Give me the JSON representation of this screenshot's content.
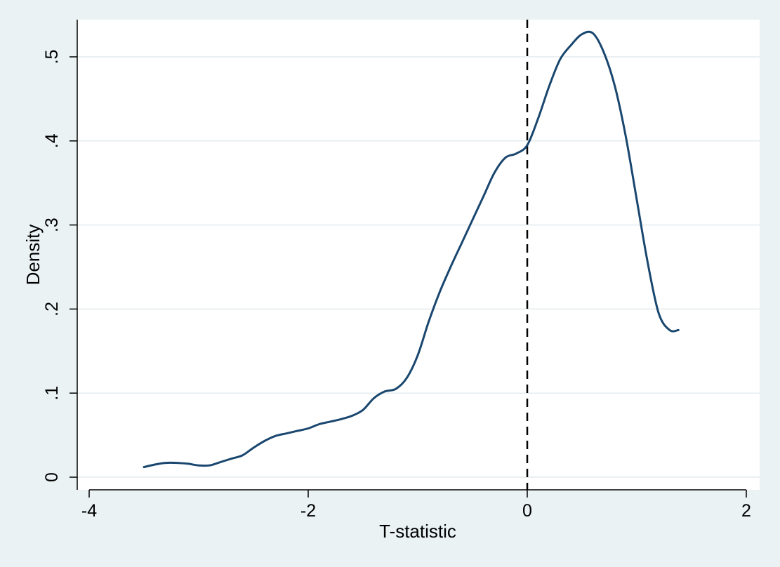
{
  "chart_data": {
    "type": "line",
    "title": "",
    "xlabel": "T-statistic",
    "ylabel": "Density",
    "xlim": [
      -4,
      2
    ],
    "ylim": [
      0,
      0.55
    ],
    "x_ticks": [
      -4,
      -2,
      0,
      2
    ],
    "x_tick_labels": [
      "-4",
      "-2",
      "0",
      "2"
    ],
    "y_ticks": [
      0,
      0.1,
      0.2,
      0.3,
      0.4,
      0.5
    ],
    "y_tick_labels": [
      "0",
      ".1",
      ".2",
      ".3",
      ".4",
      ".5"
    ],
    "grid": "horizontal",
    "reference_line": {
      "x": 0,
      "style": "dashed"
    },
    "colors": {
      "line": "#1a476f",
      "background": "#eaf2f3",
      "plot_background": "#ffffff",
      "grid": "#e4ecee"
    },
    "series": [
      {
        "x": [
          -3.5,
          -3.4,
          -3.3,
          -3.2,
          -3.1,
          -3.0,
          -2.9,
          -2.8,
          -2.7,
          -2.6,
          -2.5,
          -2.4,
          -2.3,
          -2.2,
          -2.1,
          -2.0,
          -1.9,
          -1.8,
          -1.7,
          -1.6,
          -1.5,
          -1.4,
          -1.3,
          -1.2,
          -1.1,
          -1.0,
          -0.9,
          -0.8,
          -0.7,
          -0.6,
          -0.5,
          -0.4,
          -0.3,
          -0.2,
          -0.1,
          0.0,
          0.1,
          0.2,
          0.3,
          0.4,
          0.5,
          0.6,
          0.7,
          0.8,
          0.9,
          1.0,
          1.1,
          1.2,
          1.3,
          1.38
        ],
        "values": [
          0.012,
          0.015,
          0.017,
          0.017,
          0.016,
          0.014,
          0.014,
          0.018,
          0.022,
          0.026,
          0.035,
          0.043,
          0.049,
          0.052,
          0.055,
          0.058,
          0.063,
          0.066,
          0.069,
          0.073,
          0.08,
          0.094,
          0.102,
          0.105,
          0.118,
          0.145,
          0.185,
          0.22,
          0.25,
          0.278,
          0.306,
          0.334,
          0.362,
          0.38,
          0.385,
          0.395,
          0.427,
          0.465,
          0.497,
          0.514,
          0.527,
          0.528,
          0.505,
          0.465,
          0.405,
          0.33,
          0.255,
          0.195,
          0.175,
          0.175
        ]
      }
    ]
  }
}
